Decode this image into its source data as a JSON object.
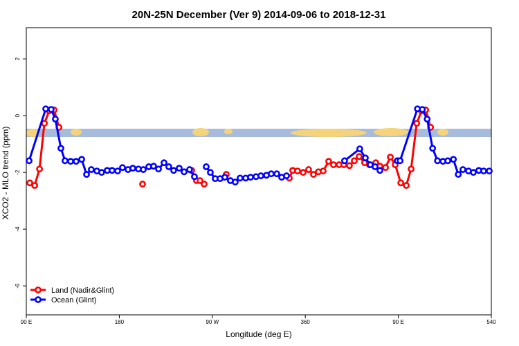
{
  "chart_data": {
    "type": "line",
    "title": "20N-25N December (Ver 9)   2014-09-06 to 2018-12-31",
    "x_label": "Longitude (deg E)",
    "y_label": "XCO2 - MLO trend (ppm)",
    "xlim": [
      90,
      540
    ],
    "ylim": [
      -7.02,
      3.1
    ],
    "xticks": [
      {
        "value": 90,
        "label": "90 E"
      },
      180,
      {
        "value": 270,
        "label": "90 W"
      },
      360,
      {
        "value": 450,
        "label": "90 E"
      },
      540
    ],
    "yticks": [
      -6,
      -4,
      -2,
      0,
      2
    ],
    "legend": "bottom-left",
    "series": [
      {
        "name": "Land (Nadir&Glint)",
        "color": "#ff0000",
        "x": [
          93.4,
          98.1,
          102.8,
          107.5,
          112.2,
          116.9,
          121.6,
          null,
          202.5,
          null,
          250.0,
          254.7,
          258.1,
          262.1,
          null,
          283.5,
          null,
          344.5,
          347.8,
          352.5,
          357.9,
          363.2,
          367.9,
          372.6,
          377.3,
          382.6,
          387.3,
          392.7,
          397.3,
          402.7,
          407.4,
          412.1,
          417.4,
          422.1,
          428.2,
          432.2,
          437.6,
          442.3,
          447.0,
          452.4,
          457.7,
          462.4,
          467.8,
          472.5,
          476.5,
          481.2
        ],
        "values": [
          -2.37,
          -2.46,
          -1.88,
          -0.27,
          0.17,
          0.2,
          -0.41,
          null,
          -2.41,
          null,
          -1.93,
          -2.29,
          -2.29,
          -2.41,
          null,
          -2.07,
          null,
          -2.2,
          -1.93,
          -1.95,
          -2.0,
          -1.9,
          -2.07,
          -1.98,
          -1.95,
          -1.61,
          -1.73,
          -1.73,
          -1.73,
          -1.76,
          -1.59,
          -1.44,
          -1.66,
          -1.73,
          -1.66,
          -1.78,
          -1.83,
          -1.46,
          -1.73,
          -2.37,
          -2.46,
          -1.88,
          -0.27,
          0.17,
          0.2,
          -0.41
        ]
      },
      {
        "name": "Ocean (Glint)",
        "color": "#0000ff",
        "x": [
          92.7,
          108.8,
          114.1,
          118.1,
          123.5,
          127.5,
          132.9,
          138.2,
          143.6,
          148.3,
          152.9,
          158.3,
          162.9,
          168.3,
          173.0,
          178.4,
          183.1,
          188.4,
          193.1,
          198.5,
          203.2,
          208.5,
          213.2,
          217.9,
          223.3,
          227.9,
          232.6,
          238.0,
          242.7,
          248.0,
          252.7,
          null,
          264.1,
          268.1,
          272.8,
          277.5,
          282.2,
          287.5,
          292.2,
          296.9,
          302.3,
          307.0,
          312.3,
          317.0,
          322.4,
          327.0,
          332.4,
          337.1,
          341.8,
          null,
          398.0,
          412.7,
          418.1,
          422.8,
          427.5,
          432.2,
          null,
          449.0,
          451.7,
          468.5,
          473.2,
          477.9,
          483.2,
          487.9,
          493.2,
          497.9,
          503.3,
          508.0,
          512.5,
          517.9,
          522.6,
          527.9,
          532.6,
          538.0
        ],
        "values": [
          -1.59,
          0.24,
          0.22,
          -0.12,
          -1.15,
          -1.59,
          -1.61,
          -1.61,
          -1.54,
          -2.07,
          -1.9,
          -1.95,
          -2.0,
          -1.93,
          -1.93,
          -1.95,
          -1.83,
          -1.9,
          -1.85,
          -1.88,
          -1.9,
          -1.8,
          -1.78,
          -1.88,
          -1.66,
          -1.8,
          -1.93,
          -1.85,
          -1.98,
          -1.9,
          -2.15,
          null,
          -1.8,
          -2.0,
          -2.22,
          -2.22,
          -2.17,
          -2.29,
          -2.34,
          -2.2,
          -2.2,
          -2.17,
          -2.15,
          -2.12,
          -2.1,
          -2.05,
          -2.05,
          -2.17,
          -2.12,
          null,
          -1.59,
          -1.17,
          -1.49,
          -1.73,
          -1.8,
          -1.93,
          null,
          -1.59,
          -1.59,
          0.24,
          0.22,
          -0.12,
          -1.15,
          -1.59,
          -1.61,
          -1.59,
          -1.54,
          -2.07,
          -1.9,
          -1.95,
          -2.0,
          -1.93,
          -1.95,
          -1.95
        ]
      }
    ]
  }
}
